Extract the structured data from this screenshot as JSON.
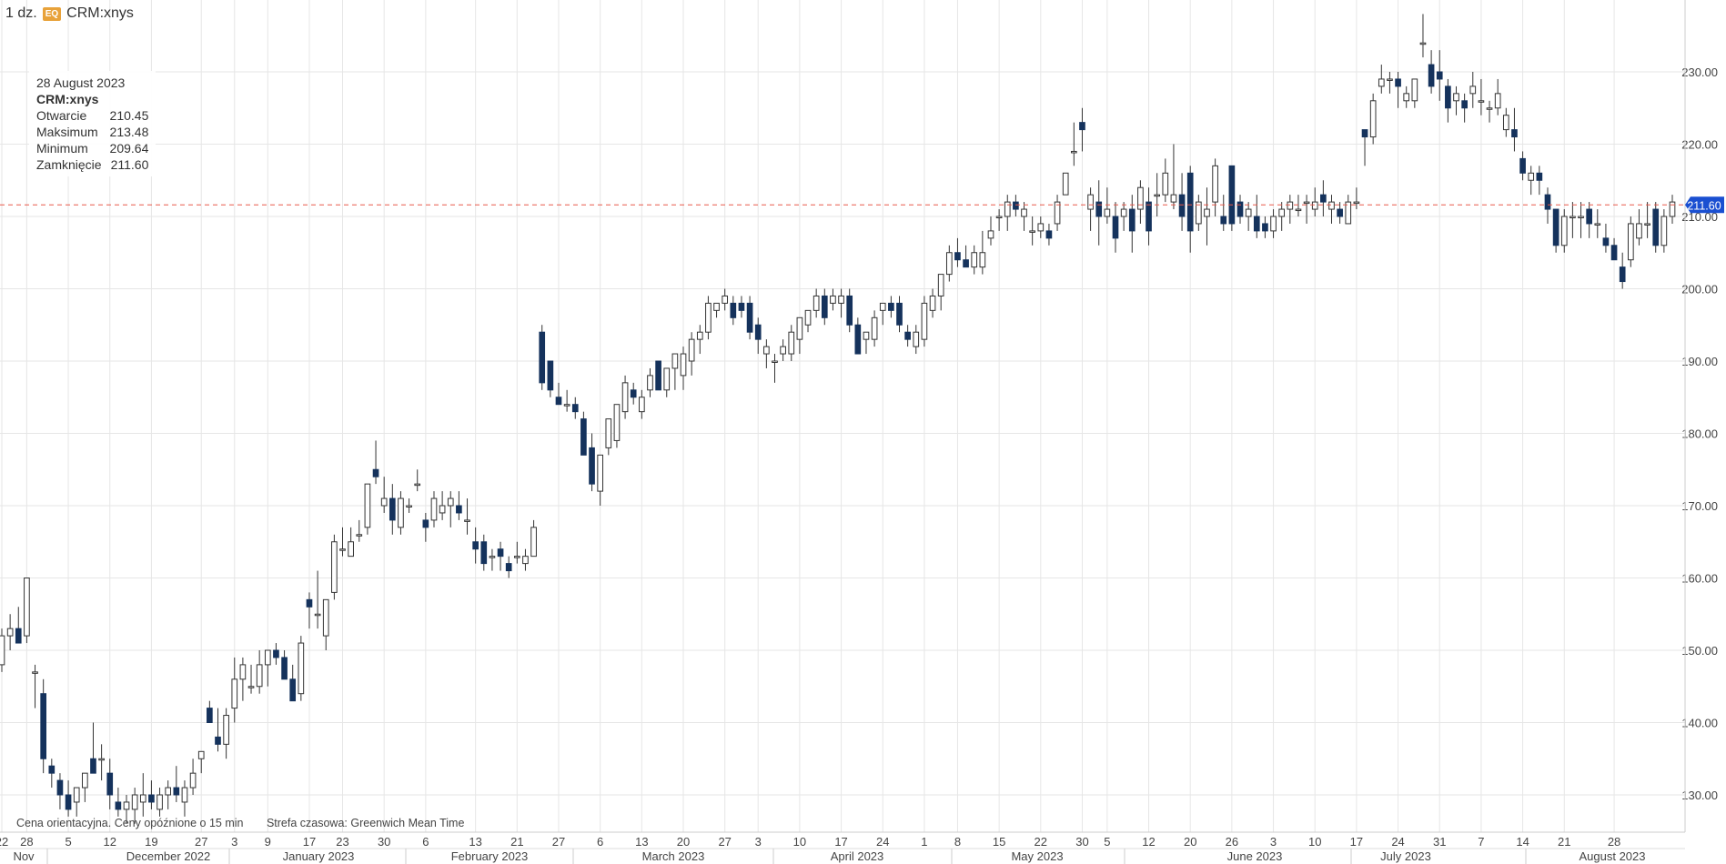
{
  "header": {
    "interval": "1 dz.",
    "badge": "EQ",
    "symbol": "CRM:xnys"
  },
  "tooltip": {
    "date": "28 August 2023",
    "symbol": "CRM:xnys",
    "rows": [
      {
        "label": "Otwarcie",
        "value": "210.45"
      },
      {
        "label": "Maksimum",
        "value": "213.48"
      },
      {
        "label": "Minimum",
        "value": "209.64"
      },
      {
        "label": "Zamknięcie",
        "value": "211.60"
      }
    ]
  },
  "footer": {
    "note": "Cena orientacyjna. Ceny opóźnione o 15 min",
    "timezone": "Strefa czasowa: Greenwich Mean Time"
  },
  "current_price_label": "211.60",
  "colors": {
    "down": "#15325c",
    "up": "#ffffff",
    "wick": "#333333",
    "price_line": "#e8584a",
    "price_label": "#1a4fd1"
  },
  "chart_data": {
    "type": "candlestick",
    "ylim": [
      125,
      236
    ],
    "yticks": [
      "130.00",
      "140.00",
      "150.00",
      "160.00",
      "170.00",
      "180.00",
      "190.00",
      "200.00",
      "210.00",
      "220.00",
      "230.00"
    ],
    "current_price": 211.6,
    "day_ticks": [
      "22",
      "28",
      "5",
      "12",
      "19",
      "27",
      "3",
      "9",
      "17",
      "23",
      "30",
      "6",
      "13",
      "21",
      "27",
      "6",
      "13",
      "20",
      "27",
      "3",
      "10",
      "17",
      "24",
      "1",
      "8",
      "15",
      "22",
      "30",
      "5",
      "12",
      "20",
      "26",
      "3",
      "10",
      "17",
      "24",
      "31",
      "7",
      "14",
      "21",
      "28"
    ],
    "month_labels": [
      "Nov",
      "December 2022",
      "January 2023",
      "February 2023",
      "March 2023",
      "April 2023",
      "May 2023",
      "June 2023",
      "July 2023",
      "August 2023"
    ],
    "candles": [
      [
        148,
        153,
        147,
        152
      ],
      [
        152,
        155,
        150,
        153
      ],
      [
        153,
        156,
        152,
        151
      ],
      [
        152,
        160,
        151,
        160
      ],
      [
        147,
        148,
        142,
        147
      ],
      [
        144,
        146,
        133,
        135
      ],
      [
        134,
        135,
        131,
        133
      ],
      [
        132,
        133,
        128,
        130
      ],
      [
        130,
        132,
        127,
        128
      ],
      [
        129,
        131,
        127,
        131
      ],
      [
        131,
        133,
        129,
        133
      ],
      [
        135,
        140,
        133,
        133
      ],
      [
        135,
        137,
        132,
        135
      ],
      [
        133,
        135,
        128,
        130
      ],
      [
        129,
        131,
        127,
        128
      ],
      [
        128,
        130,
        126,
        129
      ],
      [
        128,
        131,
        126,
        130
      ],
      [
        129,
        133,
        127,
        130
      ],
      [
        130,
        132,
        128,
        129
      ],
      [
        128,
        131,
        127,
        130
      ],
      [
        130,
        132,
        128,
        131
      ],
      [
        131,
        134,
        129,
        130
      ],
      [
        129,
        132,
        127,
        131
      ],
      [
        131,
        135,
        130,
        133
      ],
      [
        135,
        136,
        133,
        136
      ],
      [
        142,
        143,
        140,
        140
      ],
      [
        138,
        142,
        136,
        137
      ],
      [
        137,
        142,
        135,
        141
      ],
      [
        142,
        149,
        140,
        146
      ],
      [
        146,
        149,
        143,
        148
      ],
      [
        145,
        148,
        144,
        145
      ],
      [
        145,
        150,
        144,
        148
      ],
      [
        148,
        150,
        145,
        150
      ],
      [
        150,
        151,
        148,
        149
      ],
      [
        149,
        150,
        146,
        146
      ],
      [
        146,
        148,
        143,
        143
      ],
      [
        144,
        152,
        143,
        151
      ],
      [
        157,
        158,
        153,
        156
      ],
      [
        155,
        161,
        153,
        155
      ],
      [
        152,
        156,
        150,
        157
      ],
      [
        158,
        166,
        157,
        165
      ],
      [
        164,
        167,
        163,
        164
      ],
      [
        163,
        167,
        163,
        165
      ],
      [
        166,
        168,
        165,
        166
      ],
      [
        167,
        173,
        166,
        173
      ],
      [
        175,
        179,
        173,
        174
      ],
      [
        170,
        174,
        169,
        171
      ],
      [
        171,
        173,
        166,
        168
      ],
      [
        167,
        172,
        166,
        171
      ],
      [
        170,
        171,
        169,
        170
      ],
      [
        173,
        175,
        172,
        173
      ],
      [
        168,
        169,
        165,
        167
      ],
      [
        168,
        172,
        167,
        171
      ],
      [
        169,
        172,
        168,
        170
      ],
      [
        170,
        172,
        167,
        171
      ],
      [
        170,
        172,
        168,
        169
      ],
      [
        168,
        171,
        166,
        168
      ],
      [
        165,
        167,
        162,
        164
      ],
      [
        165,
        166,
        161,
        162
      ],
      [
        163,
        164,
        161,
        163
      ],
      [
        164,
        165,
        161,
        163
      ],
      [
        162,
        163,
        160,
        161
      ],
      [
        163,
        165,
        162,
        163
      ],
      [
        162,
        164,
        161,
        163
      ],
      [
        163,
        168,
        163,
        167
      ],
      [
        194,
        195,
        186,
        187
      ],
      [
        190,
        190,
        185,
        186
      ],
      [
        185,
        187,
        184,
        184
      ],
      [
        184,
        186,
        183,
        184
      ],
      [
        184,
        185,
        182,
        183
      ],
      [
        182,
        183,
        178,
        177
      ],
      [
        178,
        180,
        172,
        173
      ],
      [
        172,
        177,
        170,
        177
      ],
      [
        178,
        182,
        177,
        182
      ],
      [
        179,
        184,
        178,
        184
      ],
      [
        183,
        188,
        182,
        187
      ],
      [
        186,
        187,
        184,
        185
      ],
      [
        183,
        186,
        182,
        185
      ],
      [
        186,
        189,
        185,
        188
      ],
      [
        190,
        190,
        186,
        186
      ],
      [
        186,
        189,
        185,
        189
      ],
      [
        189,
        190,
        186,
        191
      ],
      [
        188,
        192,
        186,
        191
      ],
      [
        190,
        194,
        188,
        193
      ],
      [
        193,
        195,
        191,
        194
      ],
      [
        194,
        199,
        193,
        198
      ],
      [
        197,
        198,
        196,
        198
      ],
      [
        198,
        200,
        197,
        199
      ],
      [
        198,
        199,
        195,
        196
      ],
      [
        198,
        199,
        196,
        197
      ],
      [
        198,
        199,
        193,
        194
      ],
      [
        195,
        196,
        191,
        193
      ],
      [
        191,
        193,
        189,
        192
      ],
      [
        190,
        191,
        187,
        190
      ],
      [
        191,
        193,
        190,
        192
      ],
      [
        191,
        195,
        190,
        194
      ],
      [
        193,
        196,
        191,
        196
      ],
      [
        195,
        197,
        194,
        197
      ],
      [
        197,
        200,
        196,
        199
      ],
      [
        199,
        200,
        195,
        196
      ],
      [
        198,
        200,
        197,
        199
      ],
      [
        198,
        200,
        196,
        199
      ],
      [
        199,
        200,
        194,
        195
      ],
      [
        195,
        196,
        191,
        191
      ],
      [
        193,
        194,
        191,
        194
      ],
      [
        193,
        197,
        192,
        196
      ],
      [
        197,
        198,
        195,
        198
      ],
      [
        198,
        199,
        196,
        197
      ],
      [
        198,
        199,
        194,
        195
      ],
      [
        194,
        195,
        192,
        193
      ],
      [
        192,
        195,
        191,
        194
      ],
      [
        193,
        199,
        192,
        198
      ],
      [
        197,
        200,
        196,
        199
      ],
      [
        199,
        202,
        197,
        202
      ],
      [
        202,
        206,
        201,
        205
      ],
      [
        205,
        207,
        203,
        204
      ],
      [
        204,
        206,
        203,
        203
      ],
      [
        203,
        206,
        202,
        205
      ],
      [
        203,
        208,
        202,
        205
      ],
      [
        207,
        210,
        206,
        208
      ],
      [
        210,
        211,
        208,
        210
      ],
      [
        210,
        213,
        208,
        212
      ],
      [
        212,
        213,
        210,
        211
      ],
      [
        210,
        212,
        208,
        211
      ],
      [
        208,
        210,
        206,
        208
      ],
      [
        208,
        210,
        207,
        209
      ],
      [
        208,
        209,
        206,
        207
      ],
      [
        209,
        213,
        208,
        212
      ],
      [
        213,
        216,
        213,
        216
      ],
      [
        219,
        223,
        217,
        219
      ],
      [
        223,
        225,
        219,
        222
      ],
      [
        211,
        214,
        208,
        213
      ],
      [
        212,
        215,
        206,
        210
      ],
      [
        210,
        214,
        209,
        211
      ],
      [
        210,
        212,
        205,
        207
      ],
      [
        210,
        212,
        208,
        211
      ],
      [
        211,
        213,
        205,
        208
      ],
      [
        211,
        215,
        209,
        214
      ],
      [
        212,
        214,
        206,
        208
      ],
      [
        213,
        216,
        210,
        213
      ],
      [
        213,
        218,
        212,
        216
      ],
      [
        212,
        220,
        211,
        213
      ],
      [
        213,
        216,
        208,
        210
      ],
      [
        216,
        217,
        205,
        208
      ],
      [
        209,
        213,
        208,
        212
      ],
      [
        210,
        214,
        206,
        211
      ],
      [
        212,
        218,
        210,
        217
      ],
      [
        210,
        213,
        208,
        209
      ],
      [
        217,
        217,
        208,
        209
      ],
      [
        212,
        213,
        209,
        210
      ],
      [
        210,
        212,
        208,
        211
      ],
      [
        210,
        213,
        207,
        208
      ],
      [
        209,
        210,
        207,
        208
      ],
      [
        208,
        211,
        207,
        210
      ],
      [
        210,
        212,
        208,
        211
      ],
      [
        211,
        213,
        209,
        212
      ],
      [
        211,
        213,
        210,
        211
      ],
      [
        212,
        213,
        209,
        212
      ],
      [
        211,
        214,
        210,
        212
      ],
      [
        213,
        215,
        210,
        212
      ],
      [
        211,
        213,
        209,
        212
      ],
      [
        211,
        212,
        209,
        210
      ],
      [
        209,
        213,
        209,
        212
      ],
      [
        212,
        214,
        211,
        212
      ],
      [
        222,
        222,
        217,
        221
      ],
      [
        221,
        227,
        220,
        226
      ],
      [
        228,
        231,
        227,
        229
      ],
      [
        229,
        230,
        227,
        229
      ],
      [
        229,
        230,
        225,
        228
      ],
      [
        226,
        228,
        225,
        227
      ],
      [
        226,
        228,
        225,
        229
      ],
      [
        234,
        238,
        232,
        234
      ],
      [
        231,
        233,
        227,
        228
      ],
      [
        230,
        233,
        226,
        229
      ],
      [
        228,
        229,
        223,
        225
      ],
      [
        226,
        228,
        224,
        227
      ],
      [
        226,
        227,
        223,
        225
      ],
      [
        227,
        230,
        225,
        228
      ],
      [
        226,
        229,
        224,
        226
      ],
      [
        225,
        226,
        223,
        225
      ],
      [
        225,
        229,
        224,
        227
      ],
      [
        222,
        225,
        221,
        224
      ],
      [
        222,
        225,
        219,
        221
      ],
      [
        218,
        219,
        215,
        216
      ],
      [
        215,
        217,
        213,
        216
      ],
      [
        216,
        217,
        213,
        215
      ],
      [
        213,
        214,
        209,
        211
      ],
      [
        211,
        211,
        205,
        206
      ],
      [
        206,
        211,
        205,
        210
      ],
      [
        210,
        212,
        207,
        210
      ],
      [
        210,
        212,
        207,
        210
      ],
      [
        211,
        212,
        207,
        209
      ],
      [
        209,
        211,
        207,
        209
      ],
      [
        207,
        209,
        205,
        206
      ],
      [
        206,
        207,
        204,
        204
      ],
      [
        203,
        205,
        200,
        201
      ],
      [
        204,
        210,
        203,
        209
      ],
      [
        207,
        211,
        206,
        209
      ],
      [
        209,
        212,
        207,
        209
      ],
      [
        211,
        212,
        205,
        206
      ],
      [
        206,
        211,
        205,
        210
      ],
      [
        210,
        213,
        209,
        212
      ]
    ]
  }
}
